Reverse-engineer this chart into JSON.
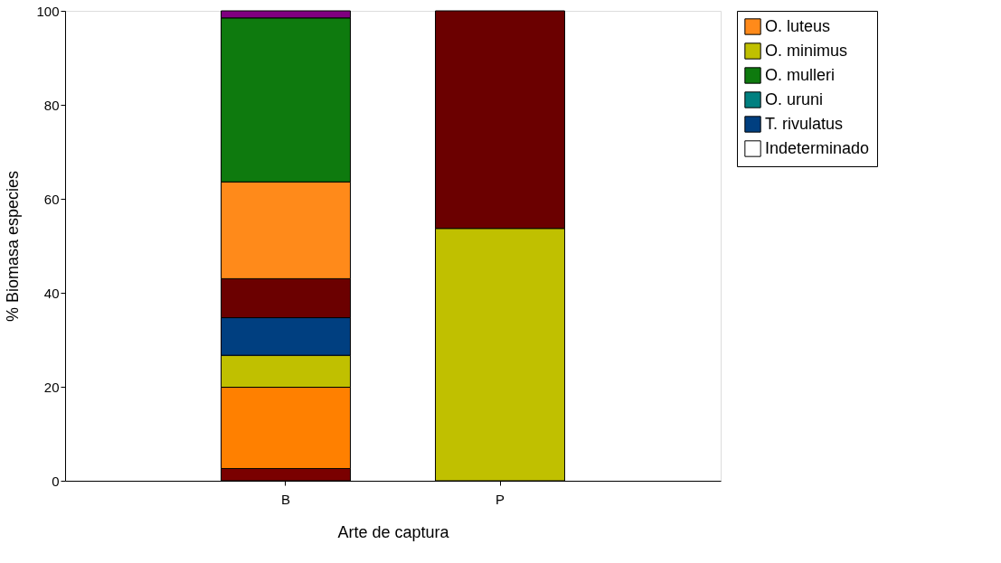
{
  "chart_data": {
    "type": "bar",
    "stacked": true,
    "xlabel": "Arte de captura",
    "ylabel": "% Biomasa especies",
    "categories": [
      "B",
      "P"
    ],
    "series": [
      {
        "color": "#7a0000",
        "values": [
          2.6,
          0
        ]
      },
      {
        "color": "#ff8000",
        "values": [
          17.3,
          0
        ]
      },
      {
        "color": "#c0c000",
        "values": [
          6.8,
          53.7
        ]
      },
      {
        "color": "#003f80",
        "values": [
          8.0,
          0
        ]
      },
      {
        "color": "#6b0000",
        "values": [
          8.3,
          46.3
        ]
      },
      {
        "name": "O. luteus",
        "color": "#ff8a1a",
        "values": [
          20.6,
          0
        ]
      },
      {
        "name": "O. minimus",
        "color": "#c0c000",
        "values": [
          0,
          0
        ]
      },
      {
        "name": "O. mulleri",
        "color": "#0e7a0e",
        "values": [
          34.9,
          0
        ]
      },
      {
        "name": "O. uruni",
        "color": "#008080",
        "values": [
          0,
          0
        ]
      },
      {
        "name": "T. rivulatus",
        "color": "#003f80",
        "values": [
          0,
          0
        ]
      },
      {
        "name": "Indeterminado",
        "color": "#ffffff",
        "values": [
          0,
          0
        ]
      },
      {
        "color": "#800080",
        "values": [
          1.5,
          0
        ]
      }
    ],
    "ylim": [
      0,
      100
    ],
    "yticks": [
      0,
      20,
      40,
      60,
      80,
      100
    ],
    "grid": false,
    "legend": "top right"
  }
}
